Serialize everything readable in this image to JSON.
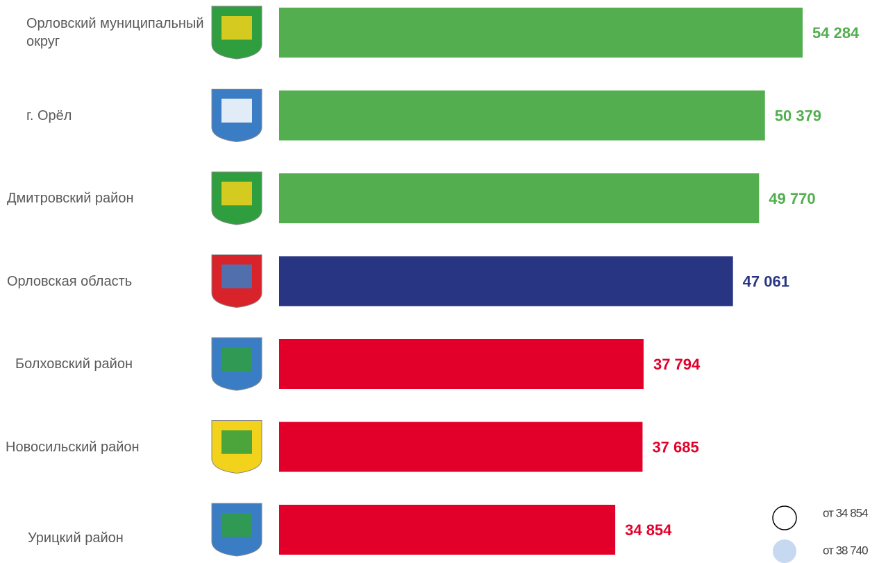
{
  "chart_data": {
    "type": "bar",
    "categories": [
      "Орловский муниципальный округ",
      "г. Орёл",
      "Дмитровский район",
      "Орловская область",
      "Болховский район",
      "Новосильский район",
      "Урицкий район"
    ],
    "values": [
      54284,
      50379,
      49770,
      47061,
      37794,
      37685,
      34854
    ],
    "value_labels": [
      "54 284",
      "50 379",
      "49 770",
      "47 061",
      "37 794",
      "37 685",
      "34 854"
    ],
    "colors": [
      "#52ae4f",
      "#52ae4f",
      "#52ae4f",
      "#283583",
      "#e2002a",
      "#e2002a",
      "#e2002a"
    ],
    "legend": [
      {
        "label": "от 34 854",
        "color": "#ffffff"
      },
      {
        "label": "от 38 740",
        "color": "#c6d9f0"
      }
    ]
  }
}
